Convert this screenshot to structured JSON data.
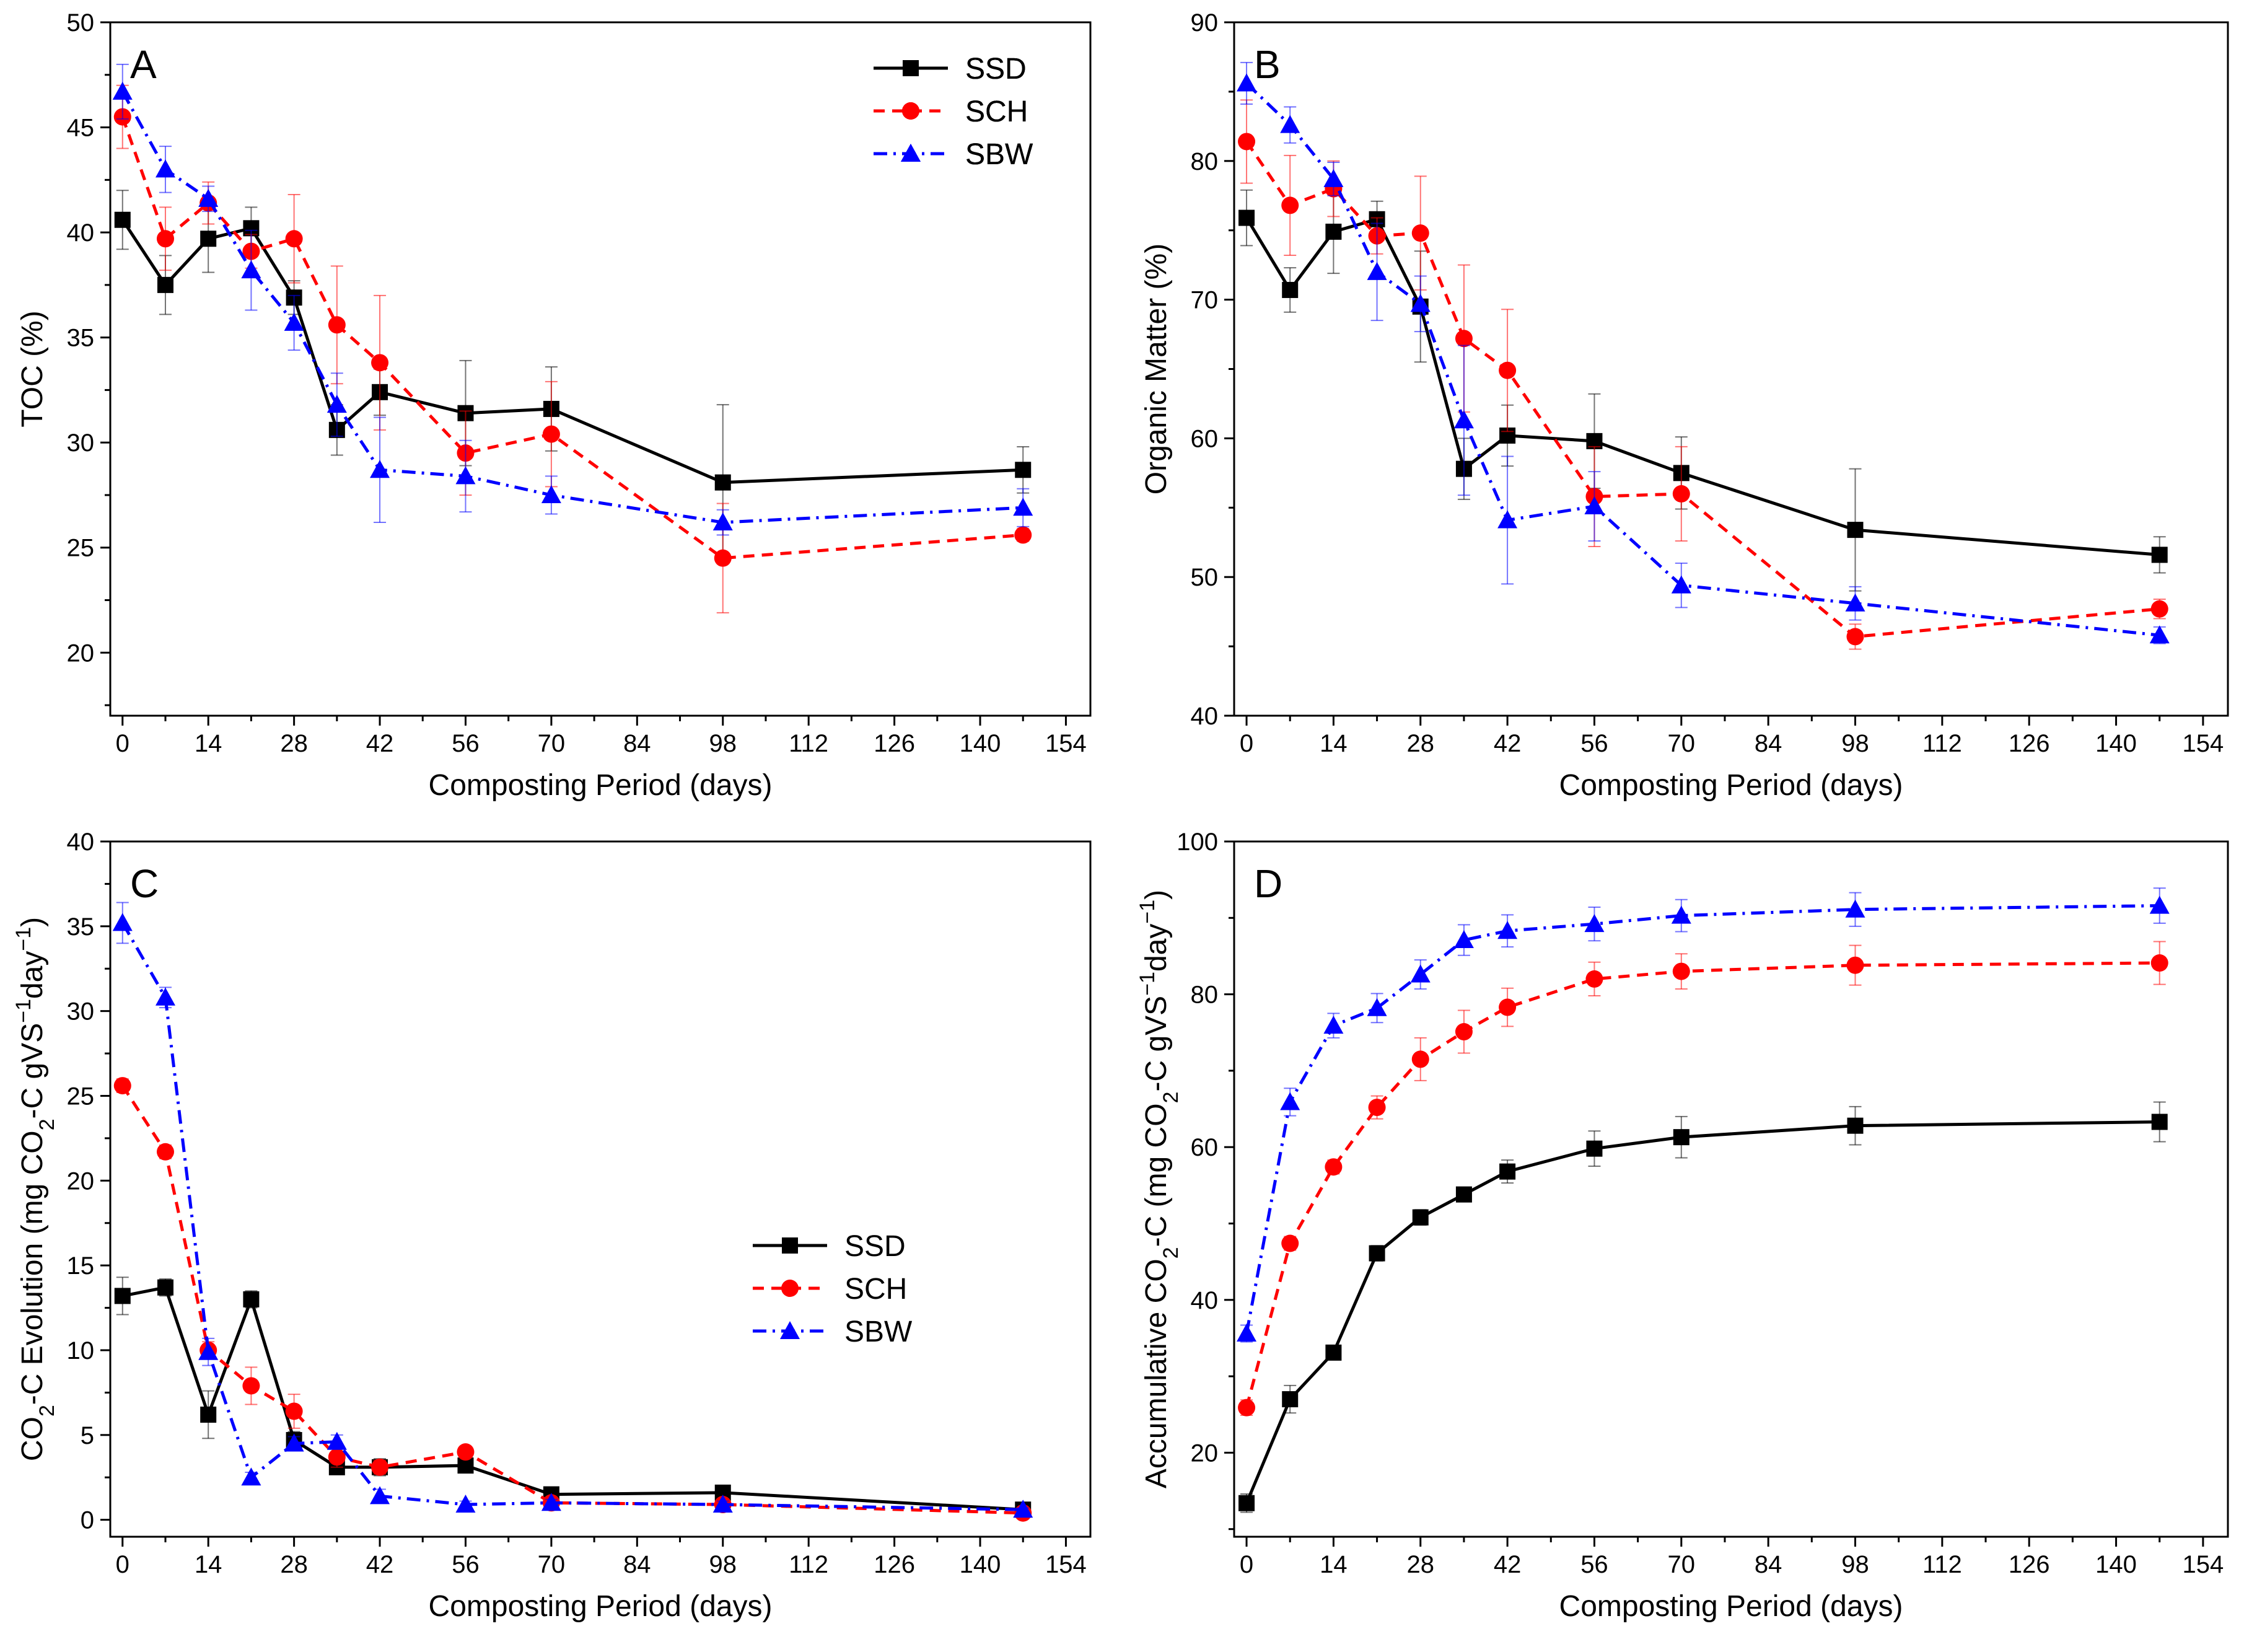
{
  "colors": {
    "SSD": "#000000",
    "SCH": "#ff0000",
    "SBW": "#0000ff"
  },
  "chart_data": [
    {
      "type": "line",
      "panel": "A",
      "xlabel": "Composting Period (days)",
      "ylabel": "TOC (%)",
      "xlim": [
        -2,
        158
      ],
      "ylim": [
        17,
        50
      ],
      "xticks": [
        0,
        14,
        28,
        42,
        56,
        70,
        84,
        98,
        112,
        126,
        140,
        154
      ],
      "yticks": [
        20,
        25,
        30,
        35,
        40,
        45,
        50
      ],
      "legend": "top-right",
      "x": [
        0,
        7,
        14,
        21,
        28,
        35,
        42,
        56,
        70,
        98,
        147
      ],
      "series": [
        {
          "name": "SSD",
          "values": [
            40.6,
            37.5,
            39.7,
            40.2,
            36.9,
            30.6,
            32.4,
            31.4,
            31.6,
            28.1,
            28.7
          ],
          "errors": [
            1.4,
            1.4,
            1.6,
            1.0,
            0.8,
            1.2,
            1.1,
            2.5,
            2.0,
            3.7,
            1.1
          ]
        },
        {
          "name": "SCH",
          "values": [
            45.5,
            39.7,
            41.4,
            39.1,
            39.7,
            35.6,
            33.8,
            29.5,
            30.4,
            24.5,
            25.6
          ],
          "errors": [
            1.5,
            1.5,
            1.0,
            0.8,
            2.1,
            2.8,
            3.2,
            2.0,
            2.5,
            2.6,
            0.3
          ]
        },
        {
          "name": "SBW",
          "values": [
            46.7,
            43.0,
            41.6,
            38.2,
            35.7,
            31.8,
            28.7,
            28.4,
            27.5,
            26.2,
            26.9
          ],
          "errors": [
            1.3,
            1.1,
            0.6,
            1.9,
            1.3,
            1.5,
            2.5,
            1.7,
            0.9,
            0.6,
            0.9
          ]
        }
      ]
    },
    {
      "type": "line",
      "panel": "B",
      "xlabel": "Composting Period (days)",
      "ylabel": "Organic Matter (%)",
      "xlim": [
        -2,
        158
      ],
      "ylim": [
        40,
        90
      ],
      "xticks": [
        0,
        14,
        28,
        42,
        56,
        70,
        84,
        98,
        112,
        126,
        140,
        154
      ],
      "yticks": [
        40,
        50,
        60,
        70,
        80,
        90
      ],
      "legend": "top-right",
      "x": [
        0,
        7,
        14,
        21,
        28,
        35,
        42,
        56,
        70,
        98,
        147
      ],
      "series": [
        {
          "name": "SSD",
          "values": [
            75.9,
            70.7,
            74.9,
            75.8,
            69.5,
            57.8,
            60.2,
            59.8,
            57.5,
            53.4,
            51.6
          ],
          "errors": [
            2.0,
            1.6,
            3.0,
            1.3,
            4.0,
            2.2,
            2.2,
            3.4,
            2.6,
            4.4,
            1.3
          ]
        },
        {
          "name": "SCH",
          "values": [
            81.4,
            76.8,
            78.0,
            74.6,
            74.8,
            67.2,
            64.9,
            55.8,
            56.0,
            45.7,
            47.7
          ],
          "errors": [
            3.0,
            3.6,
            2.0,
            1.3,
            4.1,
            5.3,
            4.4,
            3.6,
            3.4,
            0.9,
            0.7
          ]
        },
        {
          "name": "SBW",
          "values": [
            85.6,
            82.6,
            78.7,
            72.0,
            69.7,
            61.3,
            54.1,
            55.1,
            49.4,
            48.1,
            45.8
          ],
          "errors": [
            1.5,
            1.3,
            1.2,
            3.5,
            2.0,
            5.4,
            4.6,
            2.5,
            1.6,
            1.2,
            0.6
          ]
        }
      ]
    },
    {
      "type": "line",
      "panel": "C",
      "xlabel": "Composting Period (days)",
      "ylabel_parts": [
        "CO",
        "2",
        "-C Evolution (mg CO",
        "2",
        "-C gVS",
        "-1",
        "day",
        "-1",
        ")"
      ],
      "xlim": [
        -2,
        158
      ],
      "ylim": [
        -1,
        40
      ],
      "xticks": [
        0,
        14,
        28,
        42,
        56,
        70,
        84,
        98,
        112,
        126,
        140,
        154
      ],
      "yticks": [
        0,
        5,
        10,
        15,
        20,
        25,
        30,
        35,
        40
      ],
      "legend": "top-right",
      "x": [
        0,
        7,
        14,
        21,
        28,
        35,
        42,
        56,
        70,
        98,
        147
      ],
      "series": [
        {
          "name": "SSD",
          "values": [
            13.2,
            13.7,
            6.2,
            13.0,
            4.7,
            3.1,
            3.1,
            3.2,
            1.5,
            1.6,
            0.6
          ],
          "errors": [
            1.1,
            0.5,
            1.4,
            0.5,
            0.5,
            0.4,
            0.5,
            0.4,
            0.3,
            0.3,
            0.2
          ]
        },
        {
          "name": "SCH",
          "values": [
            25.6,
            21.7,
            10.0,
            7.9,
            6.4,
            3.7,
            3.1,
            4.0,
            1.0,
            0.9,
            0.4
          ],
          "errors": [
            0.4,
            0.4,
            0.5,
            1.1,
            1.0,
            0.6,
            0.4,
            0.3,
            0.2,
            0.2,
            0.1
          ]
        },
        {
          "name": "SBW",
          "values": [
            35.2,
            30.8,
            9.9,
            2.5,
            4.5,
            4.6,
            1.4,
            0.9,
            1.0,
            0.9,
            0.6
          ],
          "errors": [
            1.2,
            0.6,
            0.8,
            0.3,
            0.4,
            0.4,
            0.4,
            0.2,
            0.2,
            0.2,
            0.1
          ]
        }
      ]
    },
    {
      "type": "line",
      "panel": "D",
      "xlabel": "Composting Period (days)",
      "ylabel_parts": [
        "Accumulative CO",
        "2",
        "-C (mg CO",
        "2",
        "-C gVS",
        "-1",
        "day",
        "-1",
        ")"
      ],
      "xlim": [
        -2,
        158
      ],
      "ylim": [
        9,
        100
      ],
      "xticks": [
        0,
        14,
        28,
        42,
        56,
        70,
        84,
        98,
        112,
        126,
        140,
        154
      ],
      "yticks": [
        20,
        40,
        60,
        80,
        100
      ],
      "legend": "bottom-right",
      "x": [
        0,
        7,
        14,
        21,
        28,
        35,
        42,
        56,
        70,
        98,
        147
      ],
      "series": [
        {
          "name": "SSD",
          "values": [
            13.4,
            27.0,
            33.1,
            46.1,
            50.8,
            53.8,
            56.8,
            59.8,
            61.3,
            62.8,
            63.3
          ],
          "errors": [
            1.2,
            1.8,
            0.9,
            1.0,
            1.0,
            0.9,
            1.5,
            2.3,
            2.7,
            2.5,
            2.6
          ]
        },
        {
          "name": "SCH",
          "values": [
            25.9,
            47.4,
            57.4,
            65.2,
            71.5,
            75.1,
            78.3,
            82.0,
            83.0,
            83.8,
            84.1
          ],
          "errors": [
            1.0,
            0.9,
            0.9,
            1.5,
            2.8,
            2.8,
            2.5,
            2.2,
            2.3,
            2.6,
            2.8
          ]
        },
        {
          "name": "SBW",
          "values": [
            35.6,
            65.9,
            75.9,
            78.2,
            82.6,
            87.1,
            88.3,
            89.2,
            90.3,
            91.1,
            91.6
          ],
          "errors": [
            1.1,
            1.8,
            1.6,
            1.9,
            1.9,
            2.0,
            2.1,
            2.2,
            2.1,
            2.2,
            2.3
          ]
        }
      ]
    }
  ]
}
